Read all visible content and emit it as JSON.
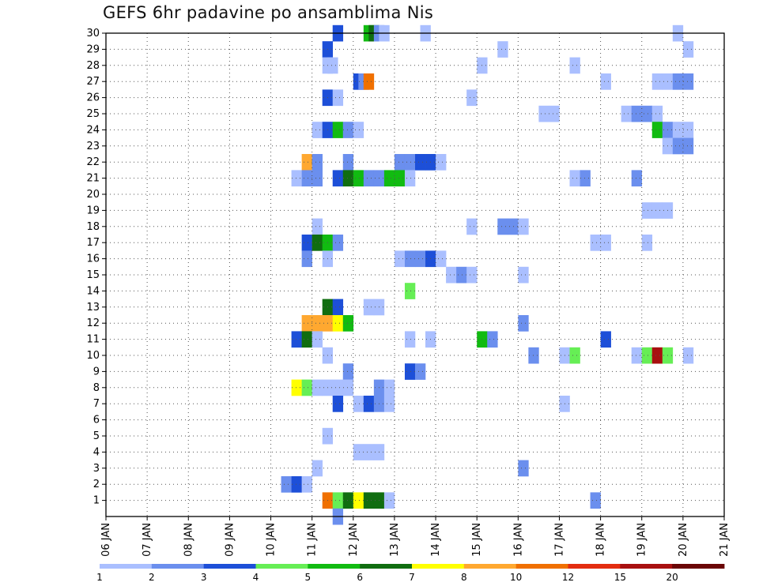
{
  "chart_data": {
    "type": "heatmap",
    "title": "GEFS 6hr padavine po ansamblima Nis",
    "y_ticks": [
      "1",
      "2",
      "3",
      "4",
      "5",
      "6",
      "7",
      "8",
      "9",
      "10",
      "11",
      "12",
      "13",
      "14",
      "15",
      "16",
      "17",
      "18",
      "19",
      "20",
      "21",
      "22",
      "23",
      "24",
      "25",
      "26",
      "27",
      "28",
      "29",
      "30"
    ],
    "x_ticks": [
      "06 JAN",
      "07 JAN",
      "08 JAN",
      "09 JAN",
      "10 JAN",
      "11 JAN",
      "12 JAN",
      "13 JAN",
      "14 JAN",
      "15 JAN",
      "16 JAN",
      "17 JAN",
      "18 JAN",
      "19 JAN",
      "20 JAN",
      "21 JAN"
    ],
    "x_range_days": [
      6,
      21
    ],
    "y_range": [
      0,
      30
    ],
    "time_step_hours": 6,
    "grid": "dotted",
    "legend": {
      "placement": "bottom",
      "labels": [
        "1",
        "2",
        "3",
        "4",
        "5",
        "6",
        "7",
        "8",
        "10",
        "12",
        "15",
        "20"
      ],
      "colors": [
        "#aabfff",
        "#6b8fee",
        "#1d4fd8",
        "#66ee55",
        "#11bb11",
        "#106d10",
        "#ffff00",
        "#ffa830",
        "#f07000",
        "#e32d10",
        "#a81010",
        "#6a0505"
      ]
    },
    "cells": [
      {
        "member": 30,
        "t": 11.625,
        "v": 3
      },
      {
        "member": 30,
        "t": 12.375,
        "v": 5
      },
      {
        "member": 30,
        "t": 12.5,
        "v": 6
      },
      {
        "member": 30,
        "t": 12.625,
        "v": 2
      },
      {
        "member": 30,
        "t": 12.75,
        "v": 1
      },
      {
        "member": 30,
        "t": 13.75,
        "v": 1
      },
      {
        "member": 30,
        "t": 19.875,
        "v": 1
      },
      {
        "member": 29,
        "t": 11.375,
        "v": 3
      },
      {
        "member": 29,
        "t": 15.625,
        "v": 1
      },
      {
        "member": 29,
        "t": 20.125,
        "v": 1
      },
      {
        "member": 28,
        "t": 11.375,
        "v": 1
      },
      {
        "member": 28,
        "t": 11.5,
        "v": 1
      },
      {
        "member": 28,
        "t": 15.125,
        "v": 1
      },
      {
        "member": 28,
        "t": 17.375,
        "v": 1
      },
      {
        "member": 27,
        "t": 12.125,
        "v": 3
      },
      {
        "member": 27,
        "t": 12.25,
        "v": 2
      },
      {
        "member": 27,
        "t": 12.375,
        "v": 10
      },
      {
        "member": 27,
        "t": 18.125,
        "v": 1
      },
      {
        "member": 27,
        "t": 19.375,
        "v": 1
      },
      {
        "member": 27,
        "t": 19.625,
        "v": 1
      },
      {
        "member": 27,
        "t": 19.875,
        "v": 2
      },
      {
        "member": 27,
        "t": 20.125,
        "v": 2
      },
      {
        "member": 26,
        "t": 11.375,
        "v": 3
      },
      {
        "member": 26,
        "t": 11.625,
        "v": 1
      },
      {
        "member": 26,
        "t": 14.875,
        "v": 1
      },
      {
        "member": 25,
        "t": 16.625,
        "v": 1
      },
      {
        "member": 25,
        "t": 16.875,
        "v": 1
      },
      {
        "member": 25,
        "t": 18.625,
        "v": 1
      },
      {
        "member": 25,
        "t": 18.875,
        "v": 2
      },
      {
        "member": 25,
        "t": 19.125,
        "v": 2
      },
      {
        "member": 25,
        "t": 19.375,
        "v": 1
      },
      {
        "member": 24,
        "t": 11.125,
        "v": 1
      },
      {
        "member": 24,
        "t": 11.375,
        "v": 3
      },
      {
        "member": 24,
        "t": 11.625,
        "v": 5
      },
      {
        "member": 24,
        "t": 11.875,
        "v": 2
      },
      {
        "member": 24,
        "t": 12.125,
        "v": 1
      },
      {
        "member": 24,
        "t": 19.375,
        "v": 5
      },
      {
        "member": 24,
        "t": 19.625,
        "v": 2
      },
      {
        "member": 24,
        "t": 19.875,
        "v": 1
      },
      {
        "member": 24,
        "t": 20.125,
        "v": 1
      },
      {
        "member": 23,
        "t": 19.625,
        "v": 1
      },
      {
        "member": 23,
        "t": 19.875,
        "v": 2
      },
      {
        "member": 23,
        "t": 20.125,
        "v": 2
      },
      {
        "member": 22,
        "t": 10.875,
        "v": 8
      },
      {
        "member": 22,
        "t": 11.125,
        "v": 2
      },
      {
        "member": 22,
        "t": 11.875,
        "v": 2
      },
      {
        "member": 22,
        "t": 13.125,
        "v": 2
      },
      {
        "member": 22,
        "t": 13.375,
        "v": 2
      },
      {
        "member": 22,
        "t": 13.625,
        "v": 3
      },
      {
        "member": 22,
        "t": 13.875,
        "v": 3
      },
      {
        "member": 22,
        "t": 14.125,
        "v": 1
      },
      {
        "member": 21,
        "t": 10.625,
        "v": 1
      },
      {
        "member": 21,
        "t": 10.875,
        "v": 2
      },
      {
        "member": 21,
        "t": 11.125,
        "v": 2
      },
      {
        "member": 21,
        "t": 11.625,
        "v": 3
      },
      {
        "member": 21,
        "t": 11.875,
        "v": 6
      },
      {
        "member": 21,
        "t": 12.125,
        "v": 5
      },
      {
        "member": 21,
        "t": 12.375,
        "v": 2
      },
      {
        "member": 21,
        "t": 12.625,
        "v": 2
      },
      {
        "member": 21,
        "t": 12.875,
        "v": 5
      },
      {
        "member": 21,
        "t": 13.125,
        "v": 5
      },
      {
        "member": 21,
        "t": 13.375,
        "v": 1
      },
      {
        "member": 21,
        "t": 17.375,
        "v": 1
      },
      {
        "member": 21,
        "t": 17.625,
        "v": 2
      },
      {
        "member": 21,
        "t": 18.875,
        "v": 2
      },
      {
        "member": 19,
        "t": 19.125,
        "v": 1
      },
      {
        "member": 19,
        "t": 19.375,
        "v": 1
      },
      {
        "member": 19,
        "t": 19.625,
        "v": 1
      },
      {
        "member": 18,
        "t": 11.125,
        "v": 1
      },
      {
        "member": 18,
        "t": 14.875,
        "v": 1
      },
      {
        "member": 18,
        "t": 15.625,
        "v": 2
      },
      {
        "member": 18,
        "t": 15.875,
        "v": 2
      },
      {
        "member": 18,
        "t": 16.125,
        "v": 1
      },
      {
        "member": 17,
        "t": 10.875,
        "v": 3
      },
      {
        "member": 17,
        "t": 11.125,
        "v": 6
      },
      {
        "member": 17,
        "t": 11.375,
        "v": 5
      },
      {
        "member": 17,
        "t": 11.625,
        "v": 2
      },
      {
        "member": 17,
        "t": 17.875,
        "v": 1
      },
      {
        "member": 17,
        "t": 18.125,
        "v": 1
      },
      {
        "member": 17,
        "t": 19.125,
        "v": 1
      },
      {
        "member": 16,
        "t": 10.875,
        "v": 2
      },
      {
        "member": 16,
        "t": 11.375,
        "v": 1
      },
      {
        "member": 16,
        "t": 13.125,
        "v": 1
      },
      {
        "member": 16,
        "t": 13.375,
        "v": 2
      },
      {
        "member": 16,
        "t": 13.625,
        "v": 2
      },
      {
        "member": 16,
        "t": 13.875,
        "v": 3
      },
      {
        "member": 16,
        "t": 14.125,
        "v": 1
      },
      {
        "member": 15,
        "t": 14.375,
        "v": 1
      },
      {
        "member": 15,
        "t": 14.625,
        "v": 2
      },
      {
        "member": 15,
        "t": 14.875,
        "v": 1
      },
      {
        "member": 15,
        "t": 16.125,
        "v": 1
      },
      {
        "member": 14,
        "t": 13.375,
        "v": 4
      },
      {
        "member": 13,
        "t": 11.375,
        "v": 6
      },
      {
        "member": 13,
        "t": 11.625,
        "v": 3
      },
      {
        "member": 13,
        "t": 12.375,
        "v": 1
      },
      {
        "member": 13,
        "t": 12.625,
        "v": 1
      },
      {
        "member": 12,
        "t": 10.875,
        "v": 8
      },
      {
        "member": 12,
        "t": 11.125,
        "v": 8
      },
      {
        "member": 12,
        "t": 11.375,
        "v": 8
      },
      {
        "member": 12,
        "t": 11.625,
        "v": 7
      },
      {
        "member": 12,
        "t": 11.875,
        "v": 5
      },
      {
        "member": 12,
        "t": 16.125,
        "v": 2
      },
      {
        "member": 11,
        "t": 10.625,
        "v": 3
      },
      {
        "member": 11,
        "t": 10.875,
        "v": 6
      },
      {
        "member": 11,
        "t": 11.125,
        "v": 1
      },
      {
        "member": 11,
        "t": 13.375,
        "v": 1
      },
      {
        "member": 11,
        "t": 13.875,
        "v": 1
      },
      {
        "member": 11,
        "t": 15.125,
        "v": 5
      },
      {
        "member": 11,
        "t": 15.375,
        "v": 2
      },
      {
        "member": 11,
        "t": 18.125,
        "v": 3
      },
      {
        "member": 10,
        "t": 11.375,
        "v": 1
      },
      {
        "member": 10,
        "t": 16.375,
        "v": 2
      },
      {
        "member": 10,
        "t": 17.125,
        "v": 1
      },
      {
        "member": 10,
        "t": 17.375,
        "v": 4
      },
      {
        "member": 10,
        "t": 18.875,
        "v": 1
      },
      {
        "member": 10,
        "t": 19.125,
        "v": 4
      },
      {
        "member": 10,
        "t": 19.375,
        "v": 15
      },
      {
        "member": 10,
        "t": 19.625,
        "v": 4
      },
      {
        "member": 10,
        "t": 20.125,
        "v": 1
      },
      {
        "member": 9,
        "t": 11.875,
        "v": 2
      },
      {
        "member": 9,
        "t": 13.375,
        "v": 3
      },
      {
        "member": 9,
        "t": 13.625,
        "v": 2
      },
      {
        "member": 8,
        "t": 10.625,
        "v": 7
      },
      {
        "member": 8,
        "t": 10.875,
        "v": 4
      },
      {
        "member": 8,
        "t": 11.125,
        "v": 1
      },
      {
        "member": 8,
        "t": 11.375,
        "v": 1
      },
      {
        "member": 8,
        "t": 11.625,
        "v": 1
      },
      {
        "member": 8,
        "t": 11.875,
        "v": 1
      },
      {
        "member": 8,
        "t": 12.625,
        "v": 2
      },
      {
        "member": 8,
        "t": 12.875,
        "v": 1
      },
      {
        "member": 7,
        "t": 11.625,
        "v": 3
      },
      {
        "member": 7,
        "t": 12.125,
        "v": 1
      },
      {
        "member": 7,
        "t": 12.375,
        "v": 3
      },
      {
        "member": 7,
        "t": 12.625,
        "v": 2
      },
      {
        "member": 7,
        "t": 12.875,
        "v": 1
      },
      {
        "member": 7,
        "t": 17.125,
        "v": 1
      },
      {
        "member": 5,
        "t": 11.375,
        "v": 1
      },
      {
        "member": 4,
        "t": 12.125,
        "v": 1
      },
      {
        "member": 4,
        "t": 12.375,
        "v": 1
      },
      {
        "member": 4,
        "t": 12.625,
        "v": 1
      },
      {
        "member": 3,
        "t": 11.125,
        "v": 1
      },
      {
        "member": 3,
        "t": 16.125,
        "v": 2
      },
      {
        "member": 2,
        "t": 10.375,
        "v": 2
      },
      {
        "member": 2,
        "t": 10.625,
        "v": 3
      },
      {
        "member": 2,
        "t": 10.875,
        "v": 1
      },
      {
        "member": 1,
        "t": 11.375,
        "v": 10
      },
      {
        "member": 1,
        "t": 11.625,
        "v": 4
      },
      {
        "member": 1,
        "t": 11.875,
        "v": 6
      },
      {
        "member": 1,
        "t": 12.125,
        "v": 7
      },
      {
        "member": 1,
        "t": 12.375,
        "v": 6
      },
      {
        "member": 1,
        "t": 12.625,
        "v": 6
      },
      {
        "member": 1,
        "t": 12.875,
        "v": 1
      },
      {
        "member": 1,
        "t": 17.875,
        "v": 2
      },
      {
        "member": 0,
        "t": 11.625,
        "v": 2
      }
    ]
  }
}
